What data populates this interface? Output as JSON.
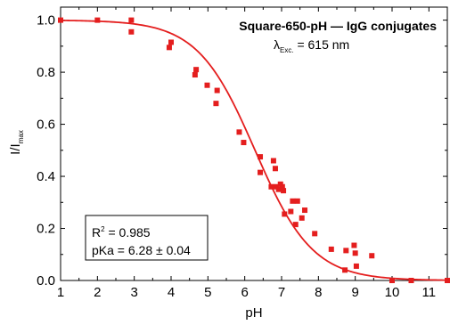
{
  "chart_data": {
    "type": "scatter",
    "title": "Square-650-pH — IgG conjugates",
    "subtitle_prefix": "λ",
    "subtitle_sub": "Exc.",
    "subtitle_value": " = 615 nm",
    "xlabel": "pH",
    "ylabel_main": "I/I",
    "ylabel_sub": "max",
    "xlim": [
      1,
      11.5
    ],
    "ylim": [
      0,
      1.05
    ],
    "xticks": [
      1,
      2,
      3,
      4,
      5,
      6,
      7,
      8,
      9,
      10,
      11
    ],
    "xtick_labels": [
      "1",
      "2",
      "3",
      "4",
      "5",
      "6",
      "7",
      "8",
      "9",
      "10",
      "11"
    ],
    "yticks": [
      0,
      0.2,
      0.4,
      0.6,
      0.8,
      1.0
    ],
    "ytick_labels": [
      "0.0",
      "0.2",
      "0.4",
      "0.6",
      "0.8",
      "1.0"
    ],
    "marker_color": "#e41e1e",
    "line_color": "#e41e1e",
    "series": [
      {
        "kind": "points",
        "x": [
          1.0,
          2.0,
          2.92,
          2.92,
          3.95,
          4.0,
          4.65,
          4.68,
          4.98,
          5.22,
          5.25,
          5.85,
          5.97,
          6.42,
          6.42,
          6.72,
          6.78,
          6.83,
          6.85,
          6.92,
          6.97,
          7.02,
          7.05,
          7.08,
          7.25,
          7.3,
          7.38,
          7.43,
          7.55,
          7.63,
          7.9,
          8.35,
          8.72,
          8.75,
          8.97,
          9.0,
          9.03,
          9.45,
          10.0,
          10.52,
          11.5
        ],
        "y": [
          1.0,
          1.0,
          1.0,
          0.955,
          0.895,
          0.915,
          0.79,
          0.81,
          0.75,
          0.68,
          0.73,
          0.57,
          0.53,
          0.415,
          0.475,
          0.36,
          0.46,
          0.43,
          0.36,
          0.35,
          0.37,
          0.36,
          0.345,
          0.255,
          0.265,
          0.305,
          0.215,
          0.305,
          0.24,
          0.27,
          0.18,
          0.12,
          0.04,
          0.115,
          0.135,
          0.105,
          0.055,
          0.095,
          0.0,
          0.0,
          0.0
        ]
      },
      {
        "kind": "fit",
        "model": "sigmoid",
        "top": 1.0,
        "bottom": 0.0,
        "x0": 6.28,
        "slope": 0.78
      }
    ],
    "annotation": {
      "r2_prefix": "R",
      "r2_sup": "2",
      "r2_value": " = 0.985",
      "pka_text": "pKa = 6.28 ± 0.04"
    }
  }
}
